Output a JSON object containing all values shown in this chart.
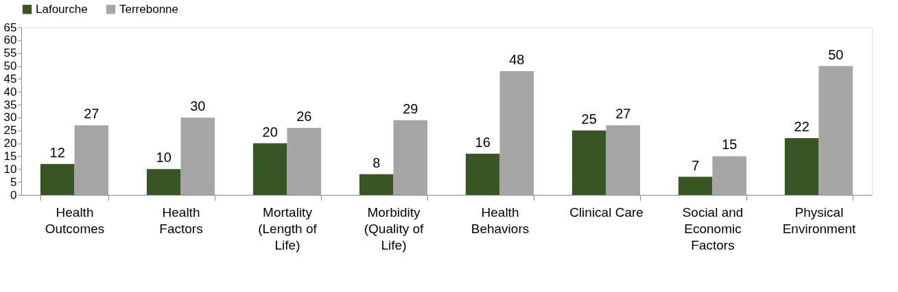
{
  "chart_data": {
    "type": "bar",
    "categories": [
      "Health Outcomes",
      "Health Factors",
      "Mortality (Length of Life)",
      "Morbidity (Quality of Life)",
      "Health Behaviors",
      "Clinical Care",
      "Social and Economic Factors",
      "Physical Environment"
    ],
    "series": [
      {
        "name": "Lafourche",
        "color": "#375623",
        "values": [
          12,
          10,
          20,
          8,
          16,
          25,
          7,
          22
        ]
      },
      {
        "name": "Terrebonne",
        "color": "#a6a6a6",
        "values": [
          27,
          30,
          26,
          29,
          48,
          27,
          15,
          50
        ]
      }
    ],
    "ylim": [
      0,
      65
    ],
    "yticks": [
      0,
      5,
      10,
      15,
      20,
      25,
      30,
      35,
      40,
      45,
      50,
      55,
      60,
      65
    ],
    "grid": false,
    "legend": "top",
    "data_labels": true
  }
}
